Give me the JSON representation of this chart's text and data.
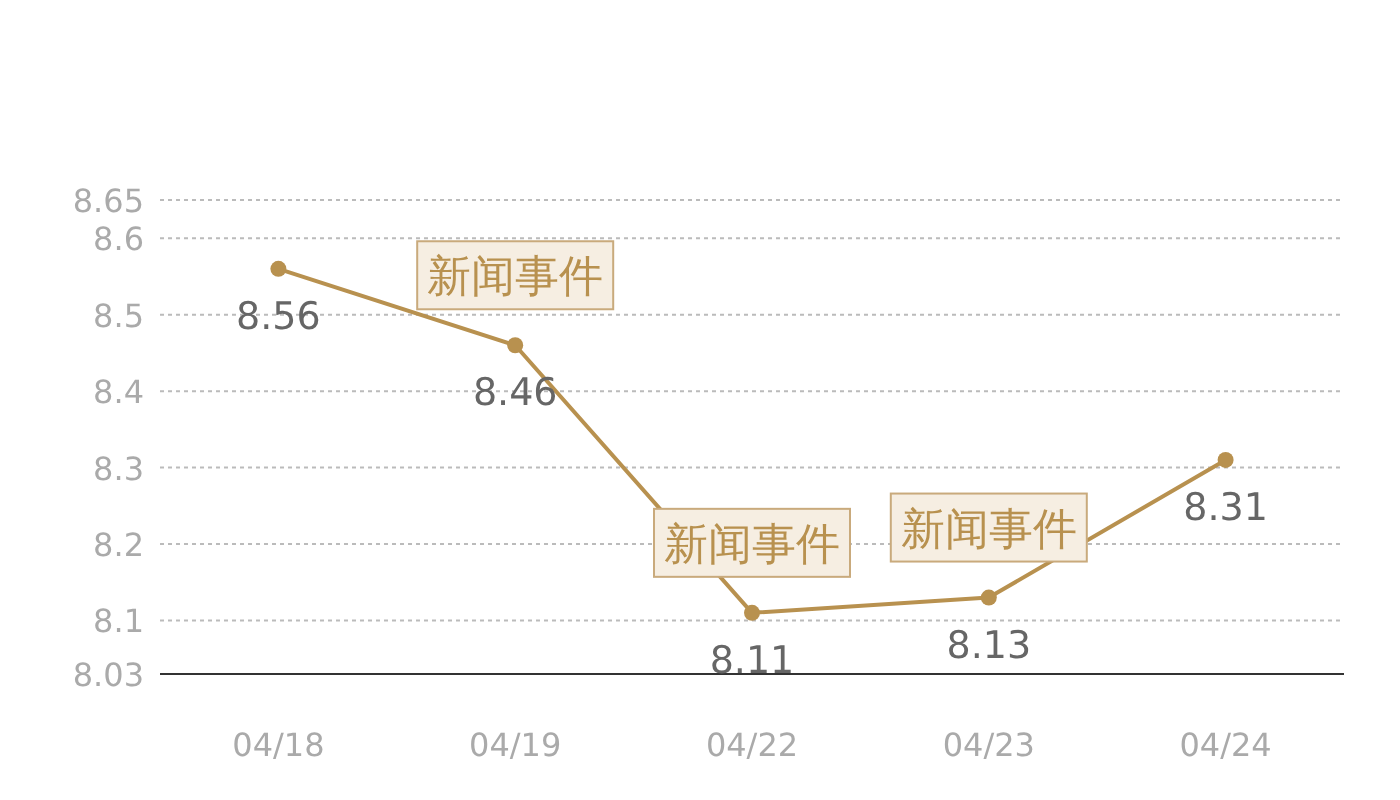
{
  "chart_data": {
    "type": "line",
    "categories": [
      "04/18",
      "04/19",
      "04/22",
      "04/23",
      "04/24"
    ],
    "series": [
      {
        "color": "#b8914f",
        "values": [
          8.56,
          8.46,
          8.11,
          8.13,
          8.31
        ]
      }
    ],
    "ylim": [
      8.03,
      8.65
    ],
    "yticks": [
      8.03,
      8.1,
      8.2,
      8.3,
      8.4,
      8.5,
      8.6,
      8.65
    ],
    "grid": "y",
    "marker": "circle",
    "line_style": "solid",
    "data_labels": true,
    "annotations": [
      {
        "text": "新闻事件",
        "x": "04/19",
        "y": 8.46
      },
      {
        "text": "新闻事件",
        "x": "04/22",
        "y": 8.11
      },
      {
        "text": "新闻事件",
        "x": "04/23",
        "y": 8.13
      }
    ]
  }
}
